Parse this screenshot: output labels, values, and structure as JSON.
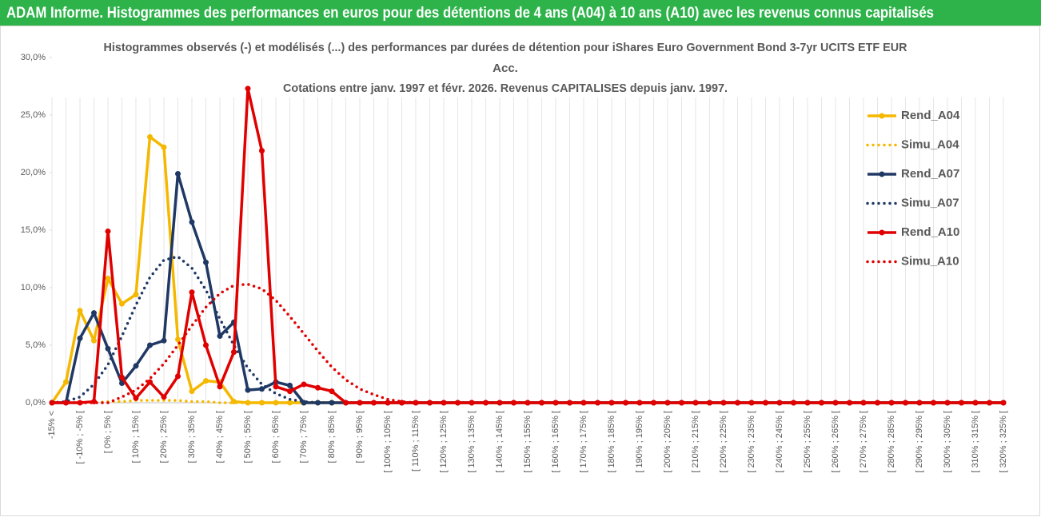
{
  "header": "ADAM Informe. Histogrammes des performances en euros pour des détentions de 4 ans (A04) à 10 ans (A10) avec les revenus connus capitalisés",
  "chart_data": {
    "type": "line",
    "title": [
      "Histogrammes observés (-) et modélisés (...) des performances par durées de détention pour iShares Euro Government Bond 3-7yr UCITS ETF EUR",
      "Acc."
    ],
    "subtitle": "Cotations entre janv. 1997 et févr. 2026. Revenus CAPITALISES depuis janv. 1997.",
    "categories": [
      "-15% <",
      null,
      "[ -10% ; -5% [",
      null,
      "[ 0% ; 5% [",
      null,
      "[ 10% ; 15% [",
      null,
      "[ 20% ; 25% [",
      null,
      "[ 30% ; 35% [",
      null,
      "[ 40% ; 45% [",
      null,
      "[ 50% ; 55% [",
      null,
      "[ 60% ; 65% [",
      null,
      "[ 70% ; 75% [",
      null,
      "[ 80% ; 85% [",
      null,
      "[ 90% ; 95% [",
      null,
      "[ 100% ; 105% [",
      null,
      "[ 110% ; 115% [",
      null,
      "[ 120% ; 125% [",
      null,
      "[ 130% ; 135% [",
      null,
      "[ 140% ; 145% [",
      null,
      "[ 150% ; 155% [",
      null,
      "[ 160% ; 165% [",
      null,
      "[ 170% ; 175% [",
      null,
      "[ 180% ; 185% [",
      null,
      "[ 190% ; 195% [",
      null,
      "[ 200% ; 205% [",
      null,
      "[ 210% ; 215% [",
      null,
      "[ 220% ; 225% [",
      null,
      "[ 230% ; 235% [",
      null,
      "[ 240% ; 245% [",
      null,
      "[ 250% ; 255% [",
      null,
      "[ 260% ; 265% [",
      null,
      "[ 270% ; 275% [",
      null,
      "[ 280% ; 285% [",
      null,
      "[ 290% ; 295% [",
      null,
      "[ 300% ; 305% [",
      null,
      "[ 310% ; 315% [",
      null,
      "[ 320% ; 325% ["
    ],
    "series": [
      {
        "name": "Rend_A04",
        "color": "#f5b800",
        "dashed": false,
        "markers": true,
        "values": [
          0,
          1.8,
          8.0,
          5.4,
          10.8,
          8.6,
          9.4,
          23.1,
          22.2,
          5.5,
          1.0,
          1.9,
          1.8,
          0.1,
          0,
          0,
          0,
          0,
          0,
          0,
          0,
          0,
          0,
          0,
          0,
          0,
          0,
          0,
          0,
          0,
          0,
          0,
          0,
          0,
          0,
          0,
          0,
          0,
          0,
          0,
          0,
          0,
          0,
          0,
          0,
          0,
          0,
          0,
          0,
          0,
          0,
          0,
          0,
          0,
          0,
          0,
          0,
          0,
          0,
          0,
          0,
          0,
          0,
          0,
          0,
          0,
          0,
          0,
          0
        ]
      },
      {
        "name": "Simu_A04",
        "color": "#f5b800",
        "dashed": true,
        "markers": false,
        "values": [
          0,
          0,
          0,
          0,
          0.1,
          0.1,
          0.2,
          0.2,
          0.2,
          0.2,
          0.1,
          0.1,
          0,
          0,
          0,
          0,
          0,
          0,
          0,
          0,
          0,
          0,
          0,
          0,
          0,
          0,
          0,
          0,
          0,
          0,
          0,
          0,
          0,
          0,
          0,
          0,
          0,
          0,
          0,
          0,
          0,
          0,
          0,
          0,
          0,
          0,
          0,
          0,
          0,
          0,
          0,
          0,
          0,
          0,
          0,
          0,
          0,
          0,
          0,
          0,
          0,
          0,
          0,
          0,
          0,
          0,
          0,
          0,
          0
        ]
      },
      {
        "name": "Rend_A07",
        "color": "#1f3864",
        "dashed": false,
        "markers": true,
        "values": [
          0,
          0,
          5.6,
          7.8,
          4.7,
          1.7,
          3.2,
          5.0,
          5.4,
          19.9,
          15.7,
          12.2,
          5.8,
          7.0,
          1.1,
          1.2,
          1.8,
          1.5,
          0,
          0,
          0,
          0,
          0,
          0,
          0,
          0,
          0,
          0,
          0,
          0,
          0,
          0,
          0,
          0,
          0,
          0,
          0,
          0,
          0,
          0,
          0,
          0,
          0,
          0,
          0,
          0,
          0,
          0,
          0,
          0,
          0,
          0,
          0,
          0,
          0,
          0,
          0,
          0,
          0,
          0,
          0,
          0,
          0,
          0,
          0,
          0,
          0,
          0,
          0
        ]
      },
      {
        "name": "Simu_A07",
        "color": "#1f3864",
        "dashed": true,
        "markers": false,
        "values": [
          0,
          0.1,
          0.5,
          1.6,
          3.3,
          5.8,
          8.5,
          10.9,
          12.4,
          12.7,
          11.7,
          9.8,
          7.3,
          5.0,
          3.0,
          1.6,
          0.8,
          0.3,
          0.1,
          0,
          0,
          0,
          0,
          0,
          0,
          0,
          0,
          0,
          0,
          0,
          0,
          0,
          0,
          0,
          0,
          0,
          0,
          0,
          0,
          0,
          0,
          0,
          0,
          0,
          0,
          0,
          0,
          0,
          0,
          0,
          0,
          0,
          0,
          0,
          0,
          0,
          0,
          0,
          0,
          0,
          0,
          0,
          0,
          0,
          0,
          0,
          0,
          0,
          0
        ]
      },
      {
        "name": "Rend_A10",
        "color": "#e00000",
        "dashed": false,
        "markers": true,
        "values": [
          0,
          0,
          0,
          0.1,
          14.9,
          2.2,
          0.4,
          1.8,
          0.5,
          2.3,
          9.6,
          5.0,
          1.4,
          4.4,
          27.3,
          21.9,
          1.4,
          1.0,
          1.6,
          1.3,
          1.0,
          0,
          0,
          0,
          0,
          0,
          0,
          0,
          0,
          0,
          0,
          0,
          0,
          0,
          0,
          0,
          0,
          0,
          0,
          0,
          0,
          0,
          0,
          0,
          0,
          0,
          0,
          0,
          0,
          0,
          0,
          0,
          0,
          0,
          0,
          0,
          0,
          0,
          0,
          0,
          0,
          0,
          0,
          0,
          0,
          0,
          0,
          0,
          0
        ]
      },
      {
        "name": "Simu_A10",
        "color": "#e00000",
        "dashed": true,
        "markers": false,
        "values": [
          0,
          0,
          0,
          0,
          0,
          0.5,
          1.1,
          2.1,
          3.4,
          5.0,
          6.7,
          8.3,
          9.5,
          10.2,
          10.3,
          9.9,
          8.9,
          7.5,
          6.0,
          4.5,
          3.1,
          2.0,
          1.2,
          0.7,
          0.3,
          0.1,
          0,
          0,
          0,
          0,
          0,
          0,
          0,
          0,
          0,
          0,
          0,
          0,
          0,
          0,
          0,
          0,
          0,
          0,
          0,
          0,
          0,
          0,
          0,
          0,
          0,
          0,
          0,
          0,
          0,
          0,
          0,
          0,
          0,
          0,
          0,
          0,
          0,
          0,
          0,
          0,
          0,
          0,
          0
        ]
      }
    ],
    "ylim": [
      0,
      30
    ],
    "yticks": [
      {
        "value": 0,
        "label": "0,0%"
      },
      {
        "value": 5,
        "label": "5,0%"
      },
      {
        "value": 10,
        "label": "10,0%"
      },
      {
        "value": 15,
        "label": "15,0%"
      },
      {
        "value": 20,
        "label": "20,0%"
      },
      {
        "value": 25,
        "label": "25,0%"
      },
      {
        "value": 30,
        "label": "30,0%"
      }
    ],
    "grid": true,
    "legend": "right"
  }
}
